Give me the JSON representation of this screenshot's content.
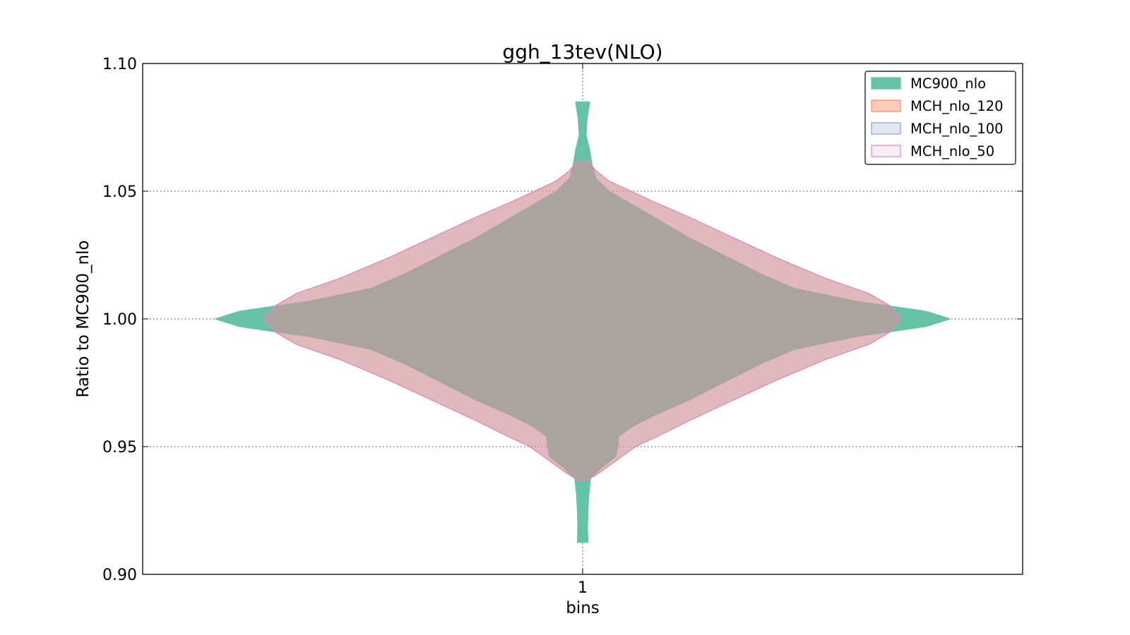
{
  "chart_data": {
    "type": "violin",
    "title": "ggh_13tev(NLO)",
    "xlabel": "bins",
    "ylabel": "Ratio to MC900_nlo",
    "categories": [
      "1"
    ],
    "ylim": [
      0.9,
      1.1
    ],
    "yticks": [
      "0.90",
      "0.95",
      "1.00",
      "1.05",
      "1.10"
    ],
    "grid": true,
    "legend_position": "top-right",
    "series": [
      {
        "name": "MC900_nlo",
        "color": "#66c2a5",
        "edge": "#66c2a5",
        "opacity": 1.0,
        "profile": [
          [
            0.9125,
            0.012
          ],
          [
            0.918,
            0.011
          ],
          [
            0.925,
            0.012
          ],
          [
            0.931,
            0.014
          ],
          [
            0.9375,
            0.018
          ],
          [
            0.942,
            0.045
          ],
          [
            0.946,
            0.075
          ],
          [
            0.95,
            0.08
          ],
          [
            0.954,
            0.082
          ],
          [
            0.958,
            0.115
          ],
          [
            0.962,
            0.16
          ],
          [
            0.968,
            0.24
          ],
          [
            0.975,
            0.32
          ],
          [
            0.982,
            0.4
          ],
          [
            0.988,
            0.48
          ],
          [
            0.993,
            0.62
          ],
          [
            0.997,
            0.78
          ],
          [
            1.0,
            0.835
          ],
          [
            1.003,
            0.78
          ],
          [
            1.007,
            0.62
          ],
          [
            1.012,
            0.48
          ],
          [
            1.018,
            0.4
          ],
          [
            1.025,
            0.32
          ],
          [
            1.032,
            0.24
          ],
          [
            1.04,
            0.16
          ],
          [
            1.046,
            0.1
          ],
          [
            1.05,
            0.06
          ],
          [
            1.055,
            0.03
          ],
          [
            1.06,
            0.022
          ],
          [
            1.066,
            0.016
          ],
          [
            1.072,
            0.008
          ],
          [
            1.078,
            0.01
          ],
          [
            1.085,
            0.016
          ]
        ]
      },
      {
        "name": "MCH_nlo_120",
        "color": "#fc8d62",
        "edge": "#fc8d62",
        "opacity": 0.45,
        "profile": [
          [
            0.937,
            0.012
          ],
          [
            0.94,
            0.04
          ],
          [
            0.945,
            0.08
          ],
          [
            0.95,
            0.12
          ],
          [
            0.954,
            0.17
          ],
          [
            0.96,
            0.24
          ],
          [
            0.968,
            0.34
          ],
          [
            0.976,
            0.44
          ],
          [
            0.984,
            0.55
          ],
          [
            0.99,
            0.65
          ],
          [
            0.995,
            0.7
          ],
          [
            1.0,
            0.725
          ],
          [
            1.005,
            0.7
          ],
          [
            1.01,
            0.65
          ],
          [
            1.016,
            0.55
          ],
          [
            1.024,
            0.44
          ],
          [
            1.032,
            0.34
          ],
          [
            1.04,
            0.24
          ],
          [
            1.046,
            0.16
          ],
          [
            1.05,
            0.11
          ],
          [
            1.054,
            0.06
          ],
          [
            1.058,
            0.03
          ],
          [
            1.062,
            0.012
          ]
        ]
      },
      {
        "name": "MCH_nlo_100",
        "color": "#8da0cb",
        "edge": "#8da0cb",
        "opacity": 0.25,
        "profile": [
          [
            0.937,
            0.012
          ],
          [
            0.94,
            0.04
          ],
          [
            0.945,
            0.08
          ],
          [
            0.95,
            0.12
          ],
          [
            0.954,
            0.17
          ],
          [
            0.96,
            0.24
          ],
          [
            0.968,
            0.34
          ],
          [
            0.976,
            0.44
          ],
          [
            0.984,
            0.55
          ],
          [
            0.99,
            0.65
          ],
          [
            0.995,
            0.7
          ],
          [
            1.0,
            0.725
          ],
          [
            1.005,
            0.7
          ],
          [
            1.01,
            0.65
          ],
          [
            1.016,
            0.55
          ],
          [
            1.024,
            0.44
          ],
          [
            1.032,
            0.34
          ],
          [
            1.04,
            0.24
          ],
          [
            1.046,
            0.16
          ],
          [
            1.05,
            0.11
          ],
          [
            1.054,
            0.06
          ],
          [
            1.058,
            0.03
          ],
          [
            1.062,
            0.012
          ]
        ]
      },
      {
        "name": "MCH_nlo_50",
        "color": "#e78ac3",
        "edge": "#e78ac3",
        "opacity": 0.15,
        "profile": [
          [
            0.937,
            0.012
          ],
          [
            0.94,
            0.04
          ],
          [
            0.945,
            0.08
          ],
          [
            0.95,
            0.12
          ],
          [
            0.954,
            0.17
          ],
          [
            0.96,
            0.24
          ],
          [
            0.968,
            0.34
          ],
          [
            0.976,
            0.44
          ],
          [
            0.984,
            0.55
          ],
          [
            0.99,
            0.65
          ],
          [
            0.995,
            0.7
          ],
          [
            1.0,
            0.725
          ],
          [
            1.005,
            0.7
          ],
          [
            1.01,
            0.65
          ],
          [
            1.016,
            0.55
          ],
          [
            1.024,
            0.44
          ],
          [
            1.032,
            0.34
          ],
          [
            1.04,
            0.24
          ],
          [
            1.046,
            0.16
          ],
          [
            1.05,
            0.11
          ],
          [
            1.054,
            0.06
          ],
          [
            1.058,
            0.03
          ],
          [
            1.062,
            0.012
          ]
        ]
      }
    ]
  }
}
